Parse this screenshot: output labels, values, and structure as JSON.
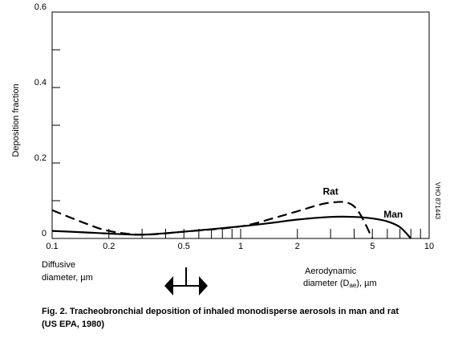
{
  "chart_data": {
    "type": "line",
    "y_label": "Deposition fraction",
    "x": [
      0.1,
      0.15,
      0.2,
      0.3,
      0.5,
      1,
      1.5,
      2,
      3,
      4,
      5,
      6,
      7,
      8
    ],
    "series": [
      {
        "name": "Man",
        "color": "#000000",
        "dash": false,
        "values": [
          0.02,
          0.016,
          0.013,
          0.01,
          0.018,
          0.032,
          0.042,
          0.05,
          0.057,
          0.057,
          0.053,
          0.045,
          0.03,
          0
        ]
      },
      {
        "name": "Rat",
        "color": "#000000",
        "dash": true,
        "values": [
          0.075,
          0.04,
          0.02,
          0.01,
          0.018,
          0.032,
          0.054,
          0.072,
          0.095,
          0.085,
          0,
          null,
          null,
          null
        ]
      }
    ],
    "log_x": true,
    "xlim": [
      0.1,
      10
    ],
    "xticks": [
      0.1,
      0.2,
      0.5,
      1,
      2,
      5,
      10
    ],
    "xminor_ticks": [
      0.3,
      0.4,
      0.6,
      0.7,
      0.8,
      0.9,
      3,
      4,
      6,
      7,
      8,
      9
    ],
    "ylim": [
      0,
      0.6
    ],
    "yticks": [
      0,
      0.2,
      0.4,
      0.6
    ],
    "yminor_ticks": [
      0.1,
      0.3,
      0.5
    ],
    "x_label_left": [
      "Diffusive",
      "diameter,  µm"
    ],
    "x_label_right": [
      "Aerodynamic",
      "diameter (D",
      "ae",
      "), µm"
    ],
    "side_code": "VHO 871443",
    "caption": [
      "Fig. 2.  Tracheobronchial deposition of inhaled monodisperse aerosols in man",
      "and rat",
      "(US EPA, 1980)"
    ]
  }
}
